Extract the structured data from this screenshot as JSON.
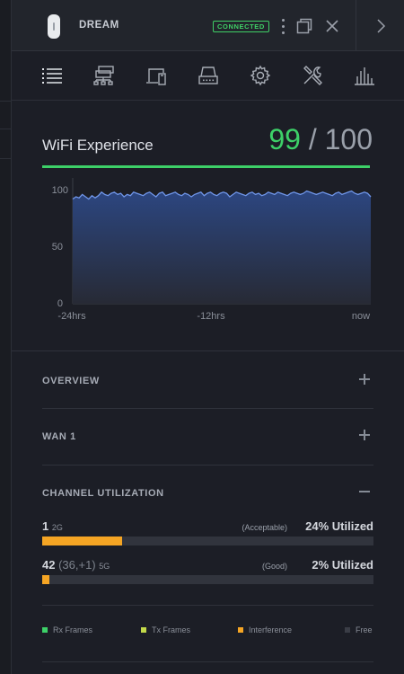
{
  "device": {
    "name": "DREAM",
    "status": "CONNECTED"
  },
  "tabs": [
    {
      "name": "list-icon"
    },
    {
      "name": "topology-icon"
    },
    {
      "name": "devices-icon"
    },
    {
      "name": "storage-icon"
    },
    {
      "name": "settings-icon"
    },
    {
      "name": "tools-icon"
    },
    {
      "name": "stats-icon"
    }
  ],
  "wifi": {
    "title": "WiFi Experience",
    "score": "99",
    "max": " / 100"
  },
  "chart_data": {
    "type": "area",
    "ylim": [
      0,
      100
    ],
    "y_ticks": [
      "100",
      "50",
      "0"
    ],
    "x_ticks": [
      "-24hrs",
      "-12hrs",
      "now"
    ],
    "line_color": "#6f95e8",
    "series": [
      {
        "values": [
          91,
          93,
          92,
          95,
          93,
          91,
          94,
          92,
          94,
          97,
          95,
          94,
          96,
          97,
          95,
          96,
          93,
          95,
          94,
          97,
          96,
          95,
          94,
          96,
          97,
          95,
          93,
          96,
          97,
          94,
          95,
          96,
          97,
          95,
          94,
          96,
          95,
          93,
          95,
          96,
          97,
          94,
          96,
          97,
          95,
          94,
          96,
          97,
          96,
          93,
          95,
          97,
          96,
          95,
          94,
          96,
          97,
          95,
          96,
          94,
          95,
          97,
          96,
          95,
          97,
          96,
          95,
          94,
          96,
          97,
          96,
          95,
          96,
          98,
          97,
          96,
          95,
          96,
          97,
          96,
          95,
          94,
          96,
          97,
          95,
          96,
          97,
          98,
          96,
          95,
          96,
          97,
          96,
          93
        ]
      }
    ]
  },
  "sections": {
    "overview": "OVERVIEW",
    "wan": "WAN 1",
    "channel": "CHANNEL UTILIZATION"
  },
  "channels": [
    {
      "num": "1",
      "ext": "",
      "band": "2G",
      "quality": "(Acceptable)",
      "utilized": "24% Utilized",
      "level": 0.24
    },
    {
      "num": "42",
      "ext": " (36,+1)",
      "band": "5G",
      "quality": "(Good)",
      "utilized": "2% Utilized",
      "level": 0.02
    }
  ],
  "legend": {
    "rx": "Rx Frames",
    "tx": "Tx Frames",
    "interference": "Interference",
    "free": "Free",
    "colors": {
      "rx": "#3dd068",
      "tx": "#c3d94a",
      "interference": "#f5a524",
      "free": "#3a3d46"
    }
  }
}
